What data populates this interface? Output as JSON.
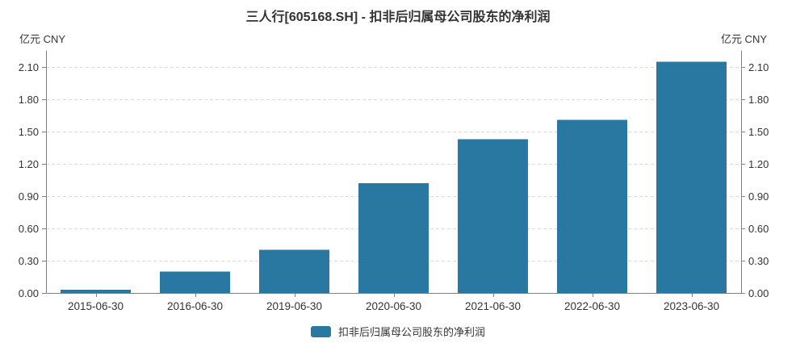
{
  "header": {
    "title": "三人行[605168.SH] - 扣非后归属母公司股东的净利润"
  },
  "axis_units": {
    "left": "亿元 CNY",
    "right": "亿元 CNY"
  },
  "legend": {
    "label": "扣非后归属母公司股东的净利润"
  },
  "colors": {
    "bar": "#2878a2",
    "text": "#333333",
    "grid": "#dcdcdc",
    "axis": "#808080",
    "background": "#ffffff"
  },
  "chart_data": {
    "type": "bar",
    "title": "三人行[605168.SH] - 扣非后归属母公司股东的净利润",
    "categories": [
      "2015-06-30",
      "2016-06-30",
      "2019-06-30",
      "2020-06-30",
      "2021-06-30",
      "2022-06-30",
      "2023-06-30"
    ],
    "values": [
      0.03,
      0.2,
      0.4,
      1.02,
      1.43,
      1.61,
      2.15
    ],
    "series_name": "扣非后归属母公司股东的净利润",
    "xlabel": "",
    "ylabel": "亿元 CNY",
    "yticks": [
      0.0,
      0.3,
      0.6,
      0.9,
      1.2,
      1.5,
      1.8,
      2.1
    ],
    "ytick_format_decimals": 2,
    "ylim": [
      0,
      2.26
    ],
    "grid": true,
    "grid_style": "dashed",
    "legend_position": "bottom",
    "legend_entries": [
      "扣非后归属母公司股东的净利润"
    ],
    "dual_y_axis": true
  }
}
